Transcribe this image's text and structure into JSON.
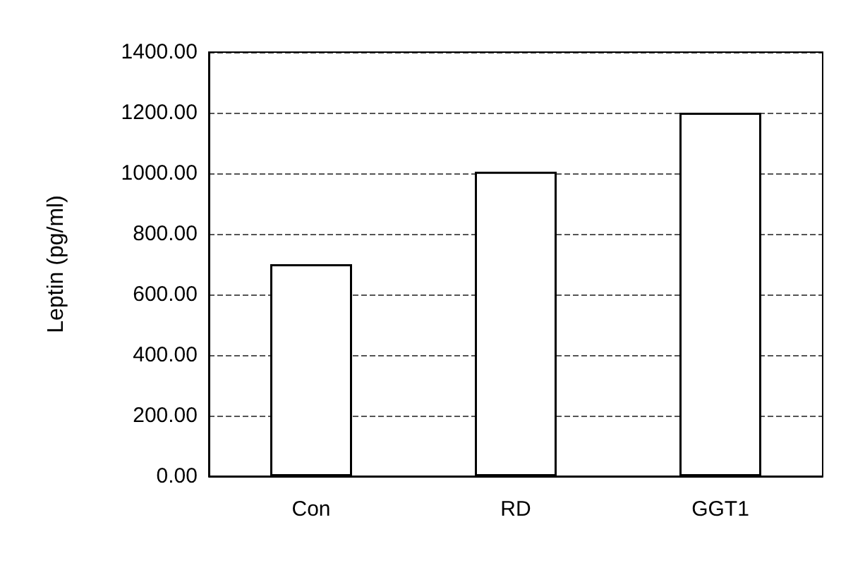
{
  "chart_data": {
    "type": "bar",
    "ylabel": "Leptin (pg/ml)",
    "categories": [
      "Con",
      "RD",
      "GGT1"
    ],
    "values": [
      700,
      1005,
      1200
    ],
    "color": "#ffffff",
    "ylim": [
      0,
      1400
    ],
    "yticks": [
      {
        "value": 0,
        "label": "0.00"
      },
      {
        "value": 200,
        "label": "200.00"
      },
      {
        "value": 400,
        "label": "400.00"
      },
      {
        "value": 600,
        "label": "600.00"
      },
      {
        "value": 800,
        "label": "800.00"
      },
      {
        "value": 1000,
        "label": "1000.00"
      },
      {
        "value": 1200,
        "label": "1200.00"
      },
      {
        "value": 1400,
        "label": "1400.00"
      }
    ],
    "grid": "y",
    "line_style": "dashed"
  }
}
